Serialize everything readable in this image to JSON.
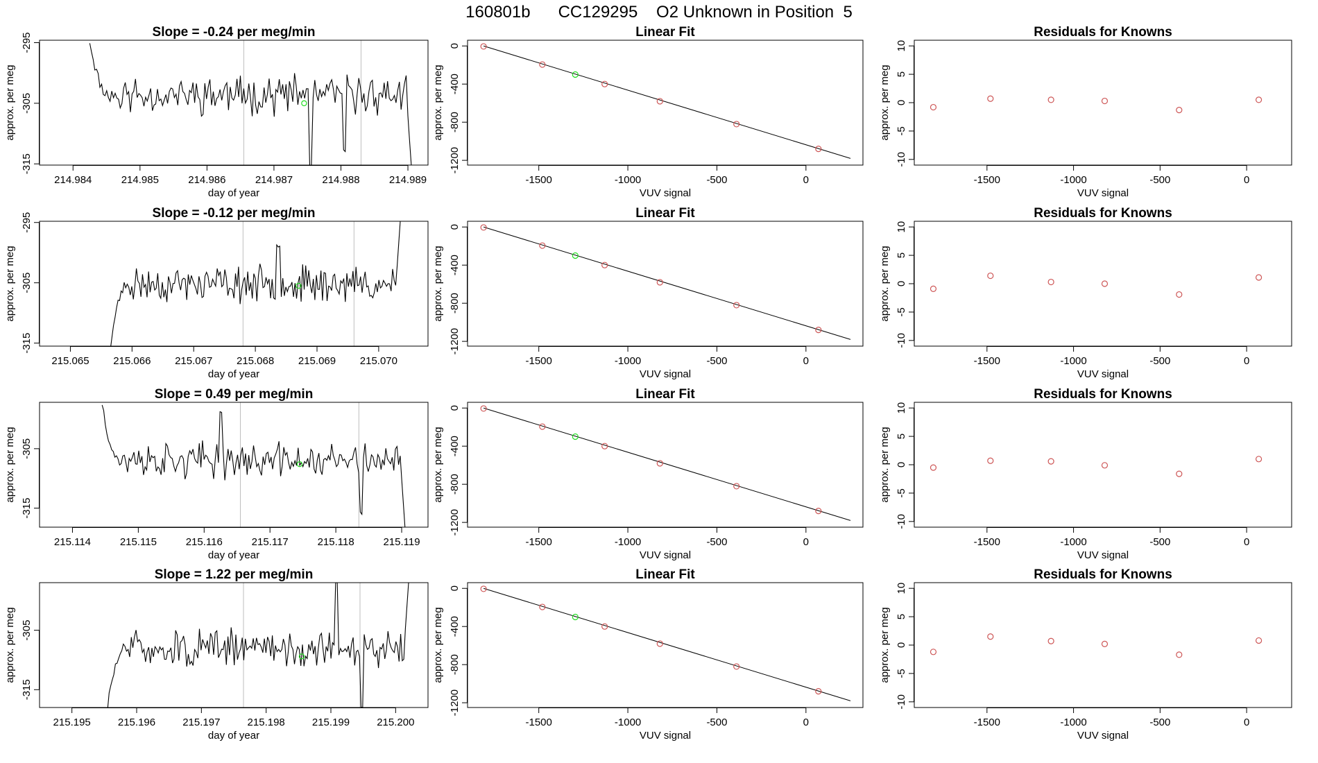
{
  "page_title": "160801b      CC129295    O2 Unknown in Position  5",
  "colors": {
    "known": "#cd5555",
    "unknown": "#22dd22",
    "line": "#000000",
    "marker_line": "#bebebe"
  },
  "chart_data": [
    {
      "type": "line",
      "panel": "series-1",
      "title": "Slope =  -0.24  per meg/min",
      "xlabel": "day of year",
      "ylabel": "approx. per meg",
      "xlim": [
        214.9835,
        214.9893
      ],
      "ylim": [
        -315.2,
        -294.6
      ],
      "xticks": [
        "214.984",
        "214.985",
        "214.986",
        "214.987",
        "214.988",
        "214.989"
      ],
      "xtick_values": [
        214.984,
        214.985,
        214.986,
        214.987,
        214.988,
        214.989
      ],
      "yticks": [
        "-295",
        "-305",
        "-315"
      ],
      "ytick_values": [
        -295,
        -305,
        -315
      ],
      "vlines": [
        214.98655,
        214.9883
      ],
      "x_start": 214.98425,
      "x_end": 214.98905,
      "y_start": -294.6,
      "y_mean": -303.6,
      "y_end": -315.2,
      "noise": 1.9,
      "seed": 11,
      "unknown_point": {
        "x": 214.98745,
        "y": -305.0
      },
      "spikes": [
        {
          "x": 214.98755,
          "y": -315.2
        },
        {
          "x": 214.98805,
          "y": -312.8
        }
      ]
    },
    {
      "type": "line",
      "panel": "series-2",
      "title": "Slope =  -0.12  per meg/min",
      "xlabel": "day of year",
      "ylabel": "approx. per meg",
      "xlim": [
        215.0645,
        215.0708
      ],
      "ylim": [
        -315.5,
        -294.8
      ],
      "xticks": [
        "215.065",
        "215.066",
        "215.067",
        "215.068",
        "215.069",
        "215.070"
      ],
      "xtick_values": [
        215.065,
        215.066,
        215.067,
        215.068,
        215.069,
        215.07
      ],
      "yticks": [
        "-295",
        "-305",
        "-315"
      ],
      "ytick_values": [
        -295,
        -305,
        -315
      ],
      "vlines": [
        215.0678,
        215.0696
      ],
      "x_start": 215.06565,
      "x_end": 215.07035,
      "y_start": -315.5,
      "y_mean": -305.2,
      "y_end": -294.8,
      "noise": 1.8,
      "seed": 23,
      "unknown_point": {
        "x": 215.0687,
        "y": -305.5
      },
      "spikes": [
        {
          "x": 215.06837,
          "y": -298.6
        }
      ]
    },
    {
      "type": "line",
      "panel": "series-3",
      "title": "Slope =  0.49  per meg/min",
      "xlabel": "day of year",
      "ylabel": "approx. per meg",
      "xlim": [
        215.1135,
        215.1194
      ],
      "ylim": [
        -318.2,
        -297.2
      ],
      "xticks": [
        "215.114",
        "215.115",
        "215.116",
        "215.117",
        "215.118",
        "215.119"
      ],
      "xtick_values": [
        215.114,
        215.115,
        215.116,
        215.117,
        215.118,
        215.119
      ],
      "yticks": [
        "-305",
        "-315"
      ],
      "ytick_values": [
        -305,
        -315
      ],
      "vlines": [
        215.11655,
        215.11835
      ],
      "x_start": 215.11445,
      "x_end": 215.11905,
      "y_start": -297.2,
      "y_mean": -307.0,
      "y_end": -318.2,
      "noise": 1.8,
      "seed": 37,
      "unknown_point": {
        "x": 215.11745,
        "y": -307.6
      },
      "spikes": [
        {
          "x": 215.11625,
          "y": -298.6
        },
        {
          "x": 215.11838,
          "y": -315.8
        }
      ]
    },
    {
      "type": "line",
      "panel": "series-4",
      "title": "Slope =  1.22  per meg/min",
      "xlabel": "day of year",
      "ylabel": "approx. per meg",
      "xlim": [
        215.1945,
        215.2005
      ],
      "ylim": [
        -318.0,
        -297.0
      ],
      "xticks": [
        "215.195",
        "215.196",
        "215.197",
        "215.198",
        "215.199",
        "215.200"
      ],
      "xtick_values": [
        215.195,
        215.196,
        215.197,
        215.198,
        215.199,
        215.2
      ],
      "yticks": [
        "-305",
        "-315"
      ],
      "ytick_values": [
        -305,
        -315
      ],
      "vlines": [
        215.19765,
        215.19945
      ],
      "x_start": 215.19555,
      "x_end": 215.2002,
      "y_start": -318.0,
      "y_mean": -308.0,
      "y_end": -297.0,
      "noise": 1.9,
      "seed": 51,
      "unknown_point": {
        "x": 215.19855,
        "y": -309.4
      },
      "spikes": [
        {
          "x": 215.19908,
          "y": -297.0
        },
        {
          "x": 215.19948,
          "y": -318.0
        }
      ]
    },
    {
      "type": "scatter",
      "panel": "fit-1",
      "title": "Linear Fit",
      "xlabel": "VUV signal",
      "ylabel": "approx. per meg",
      "xlim": [
        -1900,
        320
      ],
      "ylim": [
        -1250,
        60
      ],
      "xticks": [
        "-1500",
        "-1000",
        "-500",
        "0"
      ],
      "xtick_values": [
        -1500,
        -1000,
        -500,
        0
      ],
      "yticks": [
        "0",
        "-400",
        "-800",
        "-1200"
      ],
      "ytick_values": [
        0,
        -400,
        -800,
        -1200
      ],
      "knowns": {
        "x": [
          -1810,
          -1480,
          -1130,
          -820,
          -390,
          70
        ],
        "y": [
          -5,
          -195,
          -400,
          -580,
          -820,
          -1080
        ]
      },
      "unknown": {
        "x": -1295,
        "y": -300
      },
      "fit_line": {
        "x": [
          -1810,
          250
        ],
        "y": [
          0,
          -1180
        ]
      }
    },
    {
      "type": "scatter",
      "panel": "fit-2",
      "title": "Linear Fit",
      "xlabel": "VUV signal",
      "ylabel": "approx. per meg",
      "xlim": [
        -1900,
        320
      ],
      "ylim": [
        -1250,
        60
      ],
      "xticks": [
        "-1500",
        "-1000",
        "-500",
        "0"
      ],
      "xtick_values": [
        -1500,
        -1000,
        -500,
        0
      ],
      "yticks": [
        "0",
        "-400",
        "-800",
        "-1200"
      ],
      "ytick_values": [
        0,
        -400,
        -800,
        -1200
      ],
      "knowns": {
        "x": [
          -1810,
          -1480,
          -1130,
          -820,
          -390,
          70
        ],
        "y": [
          -5,
          -195,
          -400,
          -580,
          -820,
          -1080
        ]
      },
      "unknown": {
        "x": -1295,
        "y": -300
      },
      "fit_line": {
        "x": [
          -1810,
          250
        ],
        "y": [
          0,
          -1180
        ]
      }
    },
    {
      "type": "scatter",
      "panel": "fit-3",
      "title": "Linear Fit",
      "xlabel": "VUV signal",
      "ylabel": "approx. per meg",
      "xlim": [
        -1900,
        320
      ],
      "ylim": [
        -1250,
        60
      ],
      "xticks": [
        "-1500",
        "-1000",
        "-500",
        "0"
      ],
      "xtick_values": [
        -1500,
        -1000,
        -500,
        0
      ],
      "yticks": [
        "0",
        "-400",
        "-800",
        "-1200"
      ],
      "ytick_values": [
        0,
        -400,
        -800,
        -1200
      ],
      "knowns": {
        "x": [
          -1810,
          -1480,
          -1130,
          -820,
          -390,
          70
        ],
        "y": [
          -5,
          -195,
          -400,
          -580,
          -820,
          -1080
        ]
      },
      "unknown": {
        "x": -1295,
        "y": -300
      },
      "fit_line": {
        "x": [
          -1810,
          250
        ],
        "y": [
          0,
          -1180
        ]
      }
    },
    {
      "type": "scatter",
      "panel": "fit-4",
      "title": "Linear Fit",
      "xlabel": "VUV signal",
      "ylabel": "approx. per meg",
      "xlim": [
        -1900,
        320
      ],
      "ylim": [
        -1250,
        60
      ],
      "xticks": [
        "-1500",
        "-1000",
        "-500",
        "0"
      ],
      "xtick_values": [
        -1500,
        -1000,
        -500,
        0
      ],
      "yticks": [
        "0",
        "-400",
        "-800",
        "-1200"
      ],
      "ytick_values": [
        0,
        -400,
        -800,
        -1200
      ],
      "knowns": {
        "x": [
          -1810,
          -1480,
          -1130,
          -820,
          -390,
          70
        ],
        "y": [
          -5,
          -195,
          -400,
          -580,
          -820,
          -1080
        ]
      },
      "unknown": {
        "x": -1295,
        "y": -300
      },
      "fit_line": {
        "x": [
          -1810,
          250
        ],
        "y": [
          0,
          -1180
        ]
      }
    },
    {
      "type": "scatter",
      "panel": "resid-1",
      "title": "Residuals for Knowns",
      "xlabel": "VUV signal",
      "ylabel": "approx. per meg",
      "xlim": [
        -1920,
        260
      ],
      "ylim": [
        -11,
        11
      ],
      "xticks": [
        "-1500",
        "-1000",
        "-500",
        "0"
      ],
      "xtick_values": [
        -1500,
        -1000,
        -500,
        0
      ],
      "yticks": [
        "10",
        "5",
        "0",
        "-5",
        "-10"
      ],
      "ytick_values": [
        10,
        5,
        0,
        -5,
        -10
      ],
      "x": [
        -1810,
        -1480,
        -1130,
        -820,
        -390,
        70
      ],
      "y": [
        -0.8,
        0.7,
        0.5,
        0.3,
        -1.3,
        0.5
      ]
    },
    {
      "type": "scatter",
      "panel": "resid-2",
      "title": "Residuals for Knowns",
      "xlabel": "VUV signal",
      "ylabel": "approx. per meg",
      "xlim": [
        -1920,
        260
      ],
      "ylim": [
        -11,
        11
      ],
      "xticks": [
        "-1500",
        "-1000",
        "-500",
        "0"
      ],
      "xtick_values": [
        -1500,
        -1000,
        -500,
        0
      ],
      "yticks": [
        "10",
        "5",
        "0",
        "-5",
        "-10"
      ],
      "ytick_values": [
        10,
        5,
        0,
        -5,
        -10
      ],
      "x": [
        -1810,
        -1480,
        -1130,
        -820,
        -390,
        70
      ],
      "y": [
        -0.9,
        1.4,
        0.3,
        0.0,
        -1.9,
        1.1
      ]
    },
    {
      "type": "scatter",
      "panel": "resid-3",
      "title": "Residuals for Knowns",
      "xlabel": "VUV signal",
      "ylabel": "approx. per meg",
      "xlim": [
        -1920,
        260
      ],
      "ylim": [
        -11,
        11
      ],
      "xticks": [
        "-1500",
        "-1000",
        "-500",
        "0"
      ],
      "xtick_values": [
        -1500,
        -1000,
        -500,
        0
      ],
      "yticks": [
        "10",
        "5",
        "0",
        "-5",
        "-10"
      ],
      "ytick_values": [
        10,
        5,
        0,
        -5,
        -10
      ],
      "x": [
        -1810,
        -1480,
        -1130,
        -820,
        -390,
        70
      ],
      "y": [
        -0.5,
        0.7,
        0.6,
        -0.1,
        -1.6,
        1.0
      ]
    },
    {
      "type": "scatter",
      "panel": "resid-4",
      "title": "Residuals for Knowns",
      "xlabel": "VUV signal",
      "ylabel": "approx. per meg",
      "xlim": [
        -1920,
        260
      ],
      "ylim": [
        -11,
        11
      ],
      "xticks": [
        "-1500",
        "-1000",
        "-500",
        "0"
      ],
      "xtick_values": [
        -1500,
        -1000,
        -500,
        0
      ],
      "yticks": [
        "10",
        "5",
        "0",
        "-5",
        "-10"
      ],
      "ytick_values": [
        10,
        5,
        0,
        -5,
        -10
      ],
      "x": [
        -1810,
        -1480,
        -1130,
        -820,
        -390,
        70
      ],
      "y": [
        -1.2,
        1.5,
        0.7,
        0.2,
        -1.7,
        0.8
      ]
    }
  ]
}
